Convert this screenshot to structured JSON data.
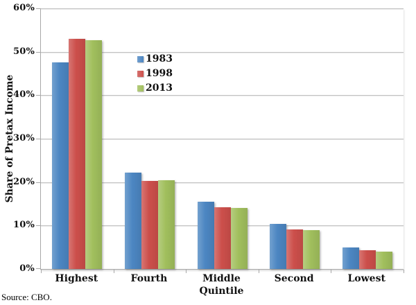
{
  "source_note": "Source: CBO.",
  "chart_data": {
    "type": "bar",
    "title": "",
    "xlabel": "Quintile",
    "ylabel": "Share of Pretax Income",
    "categories": [
      "Highest",
      "Fourth",
      "Middle",
      "Second",
      "Lowest"
    ],
    "series": [
      {
        "name": "1983",
        "color": "#4C86C2",
        "values": [
          47.6,
          22.2,
          15.5,
          10.4,
          5.0
        ]
      },
      {
        "name": "1998",
        "color": "#CC4F4B",
        "values": [
          53.0,
          20.2,
          14.2,
          9.1,
          4.3
        ]
      },
      {
        "name": "2013",
        "color": "#A1BF5D",
        "values": [
          52.6,
          20.4,
          14.0,
          9.0,
          4.0
        ]
      }
    ],
    "ylim": [
      0,
      60
    ],
    "yticks": [
      "0%",
      "10%",
      "20%",
      "30%",
      "40%",
      "50%",
      "60%"
    ],
    "ytick_step": 10,
    "grid": true,
    "legend_position": "inside-upper-middle",
    "gridline_color": "#c3c3c3",
    "axis_color": "#a8a8a8",
    "text_color": "#111111"
  }
}
